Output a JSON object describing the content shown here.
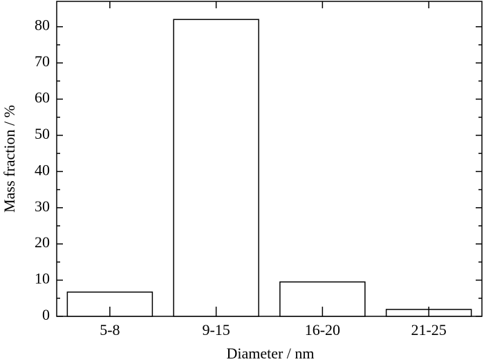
{
  "chart_data": {
    "type": "bar",
    "x_label": "Diameter / nm",
    "y_label": "Mass fraction / %",
    "categories": [
      "5-8",
      "9-15",
      "16-20",
      "21-25"
    ],
    "values": [
      6.7,
      82,
      9.5,
      1.9
    ],
    "color": "#ffffff",
    "ylim": [
      0,
      87
    ],
    "yticks": [
      0,
      10,
      20,
      30,
      40,
      50,
      60,
      70,
      80
    ],
    "grid": false
  }
}
